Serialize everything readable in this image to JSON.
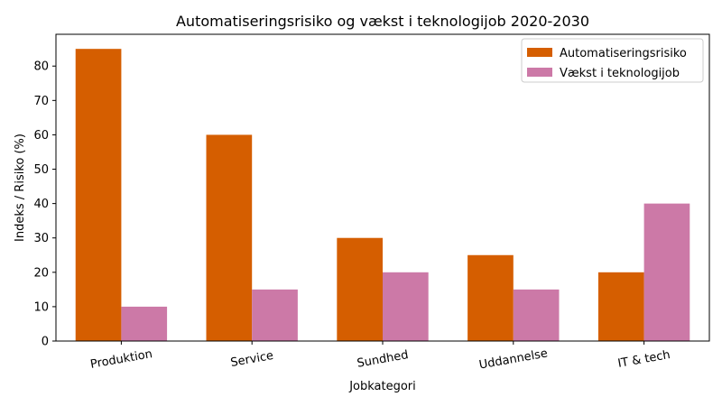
{
  "chart_data": {
    "type": "bar",
    "title": "Automatiseringsrisiko og vækst i teknologijob 2020-2030",
    "xlabel": "Jobkategori",
    "ylabel": "Indeks / Risiko (%)",
    "categories": [
      "Produktion",
      "Service",
      "Sundhed",
      "Uddannelse",
      "IT & tech"
    ],
    "series": [
      {
        "name": "Automatiseringsrisiko",
        "color": "#d55e00",
        "values": [
          85,
          60,
          30,
          25,
          20
        ]
      },
      {
        "name": "Vækst i teknologijob",
        "color": "#cc79a7",
        "values": [
          10,
          15,
          20,
          15,
          40
        ]
      }
    ],
    "ylim": [
      0,
      89.25
    ],
    "yticks": [
      0,
      10,
      20,
      30,
      40,
      50,
      60,
      70,
      80
    ],
    "grid": false,
    "legend": "top-right"
  }
}
